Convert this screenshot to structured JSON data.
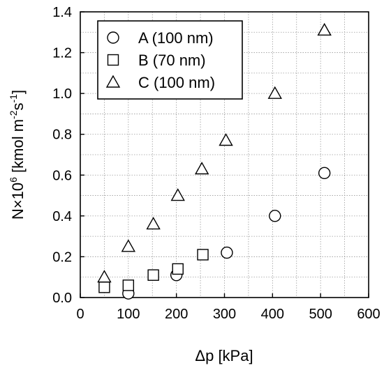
{
  "chart_data": {
    "type": "scatter",
    "title": "",
    "xlabel": "Δp [kPa]",
    "ylabel_parts": [
      "N×10",
      "6",
      " [kmol m",
      "-2",
      "s",
      "-1",
      "]"
    ],
    "xlim": [
      0,
      600
    ],
    "ylim": [
      0,
      1.4
    ],
    "xticks": [
      0,
      100,
      200,
      300,
      400,
      500,
      600
    ],
    "yticks": [
      0.0,
      0.2,
      0.4,
      0.6,
      0.8,
      1.0,
      1.2,
      1.4
    ],
    "xtick_labels": [
      "0",
      "100",
      "200",
      "300",
      "400",
      "500",
      "600"
    ],
    "ytick_labels": [
      "0.0",
      "0.2",
      "0.4",
      "0.6",
      "0.8",
      "1.0",
      "1.2",
      "1.4"
    ],
    "grid": true,
    "legend_position": "top-left",
    "series": [
      {
        "name": "A (100 nm)",
        "marker": "circle",
        "x": [
          100,
          200,
          305,
          405,
          508
        ],
        "y": [
          0.02,
          0.11,
          0.22,
          0.4,
          0.61
        ]
      },
      {
        "name": "B (70 nm)",
        "marker": "square",
        "x": [
          50,
          100,
          152,
          203,
          255
        ],
        "y": [
          0.05,
          0.06,
          0.11,
          0.14,
          0.21
        ]
      },
      {
        "name": "C (100 nm)",
        "marker": "triangle",
        "x": [
          50,
          100,
          152,
          203,
          253,
          303,
          405,
          508
        ],
        "y": [
          0.1,
          0.25,
          0.36,
          0.5,
          0.63,
          0.77,
          1.0,
          1.31
        ]
      }
    ]
  }
}
